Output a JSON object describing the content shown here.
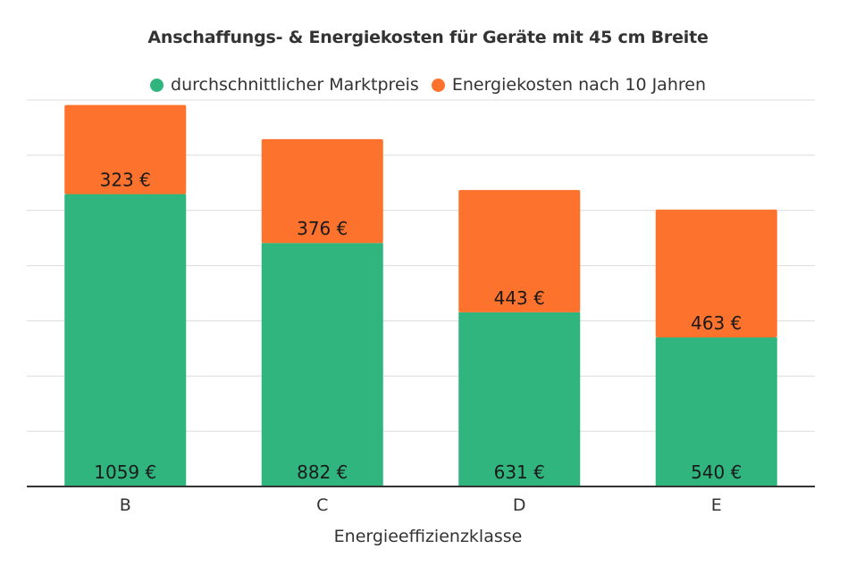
{
  "chart_data": {
    "type": "bar",
    "stacked": true,
    "title": "Anschaffungs- & Energiekosten für Geräte mit 45 cm Breite",
    "xlabel": "Energieeffizienzklasse",
    "ylabel": "",
    "categories": [
      "B",
      "C",
      "D",
      "E"
    ],
    "series": [
      {
        "name": "durchschnittlicher Marktpreis",
        "color": "#31b57f",
        "values": [
          1059,
          882,
          631,
          540
        ],
        "labels": [
          "1059 €",
          "882 €",
          "631 €",
          "540 €"
        ]
      },
      {
        "name": "Energiekosten nach 10 Jahren",
        "color": "#fd722c",
        "values": [
          323,
          376,
          443,
          463
        ],
        "labels": [
          "323 €",
          "376 €",
          "443 €",
          "463 €"
        ]
      }
    ],
    "ylim": [
      0,
      1400
    ],
    "y_gridlines": [
      200,
      400,
      600,
      800,
      1000,
      1200,
      1400
    ],
    "y_tick_labels_shown": false,
    "grid": true,
    "legend": "top-center"
  }
}
